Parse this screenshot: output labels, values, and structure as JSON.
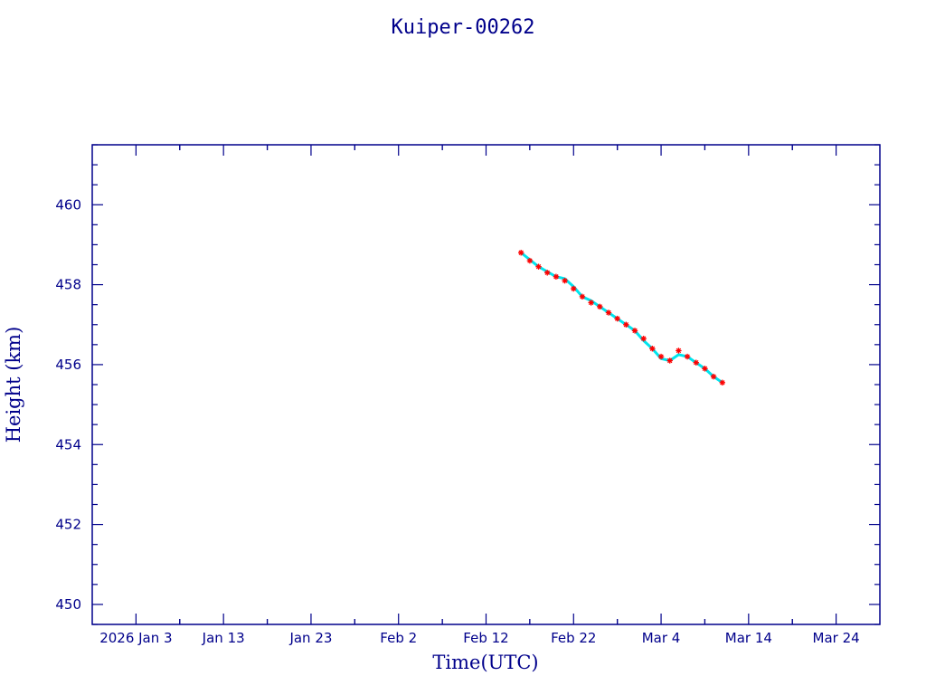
{
  "chart_data": {
    "type": "scatter",
    "title": "Kuiper-00262",
    "xlabel": "Time(UTC)",
    "ylabel": "Height (km)",
    "x_tick_labels": [
      "2026 Jan  3",
      "Jan 13",
      "Jan 23",
      "Feb  2",
      "Feb 12",
      "Feb 22",
      "Mar  4",
      "Mar 14",
      "Mar 24"
    ],
    "x_tick_dates": [
      "2026-01-03",
      "2026-01-13",
      "2026-01-23",
      "2026-02-02",
      "2026-02-12",
      "2026-02-22",
      "2026-03-04",
      "2026-03-14",
      "2026-03-24"
    ],
    "xlim": [
      "2025-12-29",
      "2026-03-29"
    ],
    "y_tick_labels": [
      "450",
      "452",
      "454",
      "456",
      "458",
      "460"
    ],
    "ylim": [
      449.5,
      461.5
    ],
    "grid": false,
    "series": [
      {
        "marker": "star",
        "color": "#ff0000",
        "x": [
          "2026-02-16",
          "2026-02-17",
          "2026-02-18",
          "2026-02-19",
          "2026-02-20",
          "2026-02-21",
          "2026-02-22",
          "2026-02-23",
          "2026-02-24",
          "2026-02-25",
          "2026-02-26",
          "2026-02-27",
          "2026-02-28",
          "2026-03-01",
          "2026-03-02",
          "2026-03-03",
          "2026-03-04",
          "2026-03-05",
          "2026-03-06",
          "2026-03-07",
          "2026-03-08",
          "2026-03-09",
          "2026-03-10",
          "2026-03-11"
        ],
        "y": [
          458.8,
          458.6,
          458.45,
          458.3,
          458.2,
          458.1,
          457.9,
          457.7,
          457.55,
          457.45,
          457.3,
          457.15,
          457.0,
          456.85,
          456.65,
          456.4,
          456.2,
          456.1,
          456.35,
          456.2,
          456.05,
          455.9,
          455.7,
          455.55
        ]
      },
      {
        "marker": "line",
        "color": "#00e5ee",
        "x": [
          "2026-02-16",
          "2026-02-18",
          "2026-02-20",
          "2026-02-21",
          "2026-02-22",
          "2026-02-23",
          "2026-02-24",
          "2026-02-26",
          "2026-02-28",
          "2026-03-01",
          "2026-03-02",
          "2026-03-03",
          "2026-03-04",
          "2026-03-05",
          "2026-03-06",
          "2026-03-07",
          "2026-03-08",
          "2026-03-09",
          "2026-03-10",
          "2026-03-11"
        ],
        "y": [
          458.8,
          458.45,
          458.2,
          458.15,
          457.95,
          457.7,
          457.6,
          457.3,
          457.0,
          456.85,
          456.6,
          456.4,
          456.15,
          456.1,
          456.25,
          456.2,
          456.05,
          455.9,
          455.7,
          455.55
        ]
      }
    ]
  }
}
